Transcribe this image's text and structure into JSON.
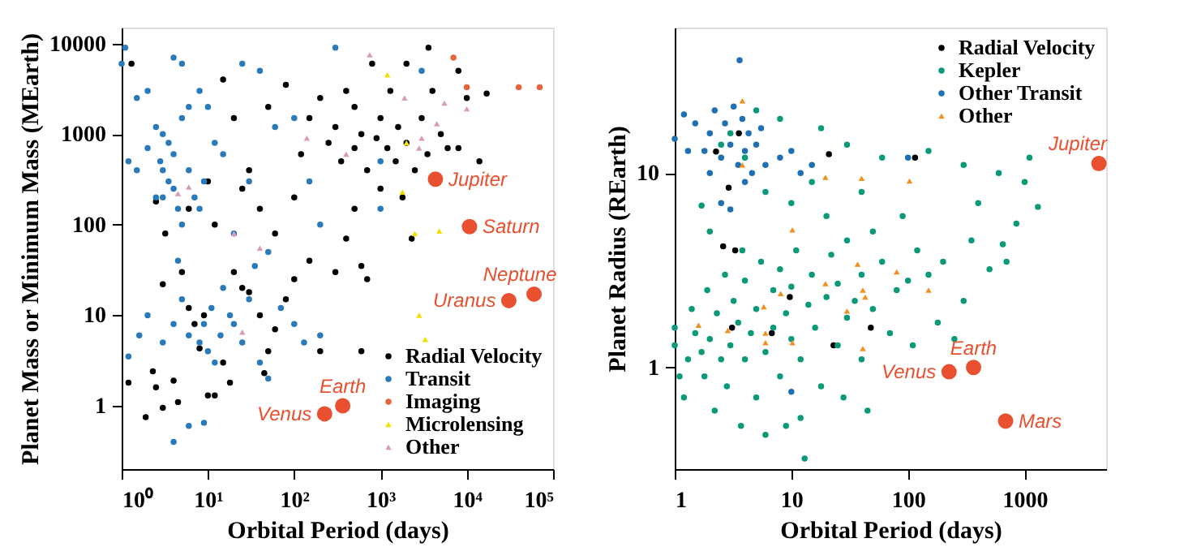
{
  "chart_data": [
    {
      "type": "scatter",
      "xlabel": "Orbital Period (days)",
      "ylabel": "Planet Mass or Minimum Mass (MEarth)",
      "log": "xy",
      "grid": false,
      "legend": "bottom right",
      "xlim": [
        1,
        100000
      ],
      "ylim": [
        0.2,
        15000
      ],
      "xticks": [
        {
          "value": 1,
          "label": "10⁰"
        },
        {
          "value": 10,
          "label": "10¹"
        },
        {
          "value": 100,
          "label": "10²"
        },
        {
          "value": 1000,
          "label": "10³"
        },
        {
          "value": 10000,
          "label": "10⁴"
        },
        {
          "value": 100000,
          "label": "10⁵"
        }
      ],
      "yticks": [
        1,
        10,
        100,
        1000,
        10000
      ],
      "series": [
        {
          "name": "Radial Velocity",
          "color": "#000000",
          "marker": "circle",
          "x": [
            1.3,
            1.2,
            1.9,
            2.5,
            2.3,
            3,
            4,
            4.5,
            3,
            2.5,
            3.2,
            5,
            6,
            7,
            8,
            9,
            10,
            12,
            15,
            18,
            20,
            25,
            30,
            40,
            45,
            50,
            60,
            80,
            100,
            150,
            200,
            300,
            400,
            600,
            700,
            600,
            15,
            20,
            30,
            50,
            80,
            100,
            120,
            150,
            200,
            250,
            300,
            350,
            400,
            500,
            500,
            600,
            700,
            800,
            900,
            1000,
            1000,
            1200,
            1300,
            1500,
            1600,
            1800,
            2000,
            2000,
            2300,
            2500,
            3000,
            3500,
            3600,
            4000,
            5000,
            6000,
            8000,
            10000,
            14000,
            17000,
            10,
            12,
            6,
            60,
            40,
            25,
            500,
            8000
          ],
          "values": [
            6000,
            1.8,
            0.75,
            1.6,
            2.4,
            0.95,
            1.9,
            1.1,
            22,
            180,
            80,
            30,
            12,
            8,
            4.3,
            10,
            1.3,
            1.3,
            3,
            1.8,
            30,
            20,
            18,
            10,
            2.3,
            4,
            7,
            15,
            25,
            40,
            4,
            30,
            70,
            35,
            25,
            4,
            4000,
            1500,
            400,
            2000,
            3500,
            200,
            600,
            1500,
            2500,
            800,
            1200,
            500,
            3000,
            700,
            2000,
            1000,
            400,
            6000,
            900,
            1500,
            250,
            700,
            3000,
            500,
            1200,
            200,
            800,
            6000,
            70,
            400,
            1500,
            600,
            9000,
            3000,
            1000,
            700,
            5000,
            2500,
            500,
            2800,
            300,
            100,
            150,
            80,
            150,
            250,
            150,
            700
          ]
        },
        {
          "name": "Transit",
          "color": "#2a7ab9",
          "marker": "circle",
          "x": [
            1.1,
            1.5,
            2,
            2.5,
            3,
            3,
            3.5,
            4,
            4,
            4.5,
            5,
            3.5,
            2.8,
            2,
            1.5,
            1.2,
            5,
            6,
            7,
            8,
            4,
            5,
            4,
            6,
            9,
            1.2,
            1.6,
            2,
            3,
            4,
            5,
            6,
            8,
            9,
            10,
            11,
            12,
            14,
            15,
            18,
            20,
            25,
            30,
            40,
            50,
            35,
            50,
            70,
            100,
            130,
            200,
            200,
            150,
            100,
            300,
            25,
            40,
            10,
            15,
            20,
            30,
            60,
            1000,
            3000,
            1000,
            9,
            12,
            8,
            4.5,
            3,
            2.5,
            6,
            1
          ],
          "values": [
            9000,
            2500,
            3000,
            1200,
            400,
            200,
            300,
            600,
            250,
            150,
            100,
            800,
            500,
            700,
            400,
            500,
            1500,
            400,
            200,
            3000,
            7000,
            6000,
            0.4,
            0.6,
            0.65,
            3.5,
            6,
            10,
            5,
            8,
            15,
            6,
            5,
            8,
            4,
            12,
            3,
            6,
            20,
            10,
            8,
            5,
            15,
            3,
            2,
            35,
            50,
            12,
            8,
            5,
            6,
            100,
            300,
            1500,
            9000,
            6000,
            5000,
            2000,
            600,
            80,
            300,
            1200,
            150,
            5000,
            500,
            300,
            800,
            150,
            40,
            1000,
            200,
            2000,
            6000
          ]
        },
        {
          "name": "Imaging",
          "color": "#e8643c",
          "marker": "circle",
          "x": [
            7000,
            10000,
            40000,
            70000
          ],
          "values": [
            7000,
            3300,
            3300,
            3300
          ]
        },
        {
          "name": "Microlensing",
          "color": "#f0e000",
          "marker": "triangle",
          "x": [
            1200,
            2000,
            1800,
            2500,
            4800,
            2800,
            3300
          ],
          "values": [
            4500,
            800,
            230,
            80,
            85,
            10,
            5.4
          ]
        },
        {
          "name": "Other",
          "color": "#d89cb8",
          "marker": "triangle",
          "x": [
            750,
            1900,
            5500,
            10000,
            4500,
            3000,
            2800,
            140,
            400,
            4.5,
            6,
            20,
            40,
            25
          ],
          "values": [
            7500,
            2500,
            2200,
            1900,
            1300,
            900,
            700,
            900,
            600,
            220,
            260,
            80,
            55,
            6.5
          ]
        },
        {
          "color": "#e8502f",
          "marker": "circle",
          "x": [
            4333,
            10759,
            60190,
            30687,
            365,
            225
          ],
          "values": [
            318,
            95,
            17.1,
            14.5,
            1,
            0.815
          ]
        }
      ],
      "annotations": [
        {
          "text": "Jupiter",
          "x": 4333,
          "y": 318
        },
        {
          "text": "Saturn",
          "x": 10759,
          "y": 95
        },
        {
          "text": "Neptune",
          "x": 60190,
          "y": 17.1
        },
        {
          "text": "Uranus",
          "x": 30687,
          "y": 14.5
        },
        {
          "text": "Earth",
          "x": 365,
          "y": 1
        },
        {
          "text": "Venus",
          "x": 225,
          "y": 0.815
        }
      ]
    },
    {
      "type": "scatter",
      "xlabel": "Orbital Period (days)",
      "ylabel": "Planet Radius (REarth)",
      "log": "xy",
      "grid": false,
      "legend": "top right",
      "xlim": [
        1,
        5000
      ],
      "ylim": [
        0.3,
        56
      ],
      "xticks": [
        1,
        10,
        100,
        1000
      ],
      "yticks": [
        1,
        10
      ],
      "series": [
        {
          "name": "Radial Velocity",
          "color": "#000000",
          "marker": "circle",
          "x": [
            2.26,
            3.55,
            2.9,
            2.6,
            3.3,
            3.1,
            6.8,
            9.7,
            21,
            23,
            48,
            115
          ],
          "values": [
            12.9,
            16,
            8.4,
            4.2,
            4,
            1.6,
            1.5,
            2.3,
            12.5,
            1.3,
            1.6,
            12
          ]
        },
        {
          "name": "Kepler",
          "color": "#0a9a7a",
          "marker": "circle",
          "x": [
            1,
            1,
            1.1,
            1.2,
            1.3,
            1.4,
            1.5,
            1.7,
            1.8,
            1.9,
            2,
            2.2,
            2.3,
            2.5,
            2.7,
            2.8,
            3,
            3.2,
            3.5,
            3.7,
            4,
            4,
            4.5,
            5,
            5,
            5.5,
            6,
            6,
            7,
            7,
            8,
            8,
            9,
            10,
            10,
            11,
            12,
            12,
            13,
            14,
            15,
            16,
            18,
            20,
            22,
            25,
            25,
            28,
            30,
            30,
            35,
            40,
            40,
            45,
            50,
            50,
            60,
            70,
            80,
            90,
            100,
            110,
            120,
            150,
            180,
            200,
            250,
            300,
            350,
            400,
            500,
            650,
            700,
            850,
            1100,
            1300,
            1000,
            600,
            300,
            150,
            60,
            30,
            18,
            8,
            5,
            2.5,
            3,
            4,
            6,
            10,
            20,
            40,
            15,
            3.8,
            2,
            1.7,
            9
          ],
          "values": [
            1.3,
            1.6,
            0.9,
            0.7,
            1.1,
            2,
            1.5,
            1.2,
            0.9,
            2.5,
            1.4,
            0.6,
            1.9,
            1.1,
            3,
            0.8,
            1.3,
            2.2,
            1.7,
            0.5,
            1.1,
            2.8,
            1.5,
            0.7,
            2,
            3.5,
            1.2,
            0.45,
            2.5,
            1.6,
            0.9,
            3.2,
            1.9,
            1.4,
            2.6,
            4,
            1.1,
            0.55,
            0.34,
            2.1,
            3,
            1.6,
            0.8,
            2.3,
            3.8,
            1.3,
            2.7,
            0.7,
            1.8,
            4.5,
            2.2,
            3,
            1.1,
            0.6,
            2,
            5,
            3.5,
            1.5,
            2.5,
            6,
            2.8,
            1.3,
            4,
            3,
            1.7,
            3.5,
            1.4,
            2.2,
            4.5,
            7,
            3.2,
            4.3,
            3.5,
            5.5,
            12,
            6.7,
            9,
            10,
            11,
            13,
            12,
            14,
            17,
            19,
            21,
            14,
            16,
            12,
            8,
            7,
            6,
            8,
            9,
            4,
            5,
            6.8,
            0.5
          ]
        },
        {
          "name": "Other Transit",
          "color": "#1f6fb4",
          "marker": "circle",
          "x": [
            1,
            1.2,
            1.5,
            1.8,
            2,
            2.2,
            2.5,
            2.7,
            3,
            3.2,
            3.5,
            3.8,
            4,
            4.3,
            4.6,
            5,
            3.6,
            6,
            8,
            10,
            12,
            15,
            100,
            10,
            2.5,
            3,
            1.3,
            2,
            4,
            5.5
          ],
          "values": [
            15,
            20,
            18,
            13,
            16,
            21,
            12,
            18,
            14,
            22,
            11,
            19,
            13,
            16,
            10,
            14,
            38,
            11,
            12,
            13,
            10,
            11,
            12,
            0.75,
            7,
            6.5,
            13,
            10,
            9,
            17
          ]
        },
        {
          "name": "Other",
          "color": "#f0901e",
          "marker": "triangle",
          "x": [
            3.8,
            3.8,
            19.6,
            40,
            103,
            10.2,
            37,
            19.6,
            80,
            150,
            41,
            43,
            30,
            8.1,
            5.8,
            6,
            6,
            10.2,
            2.85,
            1.6,
            41
          ],
          "values": [
            23.5,
            11,
            9.5,
            9.4,
            9.1,
            5.1,
            3.4,
            2.7,
            3.1,
            2.5,
            2.5,
            2.3,
            1.95,
            2.4,
            2.05,
            1.5,
            1.34,
            1.34,
            1.55,
            1.65,
            1.25
          ]
        },
        {
          "color": "#e8502f",
          "marker": "circle",
          "x": [
            4333,
            365,
            225,
            687
          ],
          "values": [
            11.2,
            1,
            0.95,
            0.53
          ]
        }
      ],
      "annotations": [
        {
          "text": "Jupiter",
          "x": 4333,
          "y": 11.2
        },
        {
          "text": "Earth",
          "x": 365,
          "y": 1
        },
        {
          "text": "Venus",
          "x": 225,
          "y": 0.95
        },
        {
          "text": "Mars",
          "x": 687,
          "y": 0.53
        }
      ]
    }
  ]
}
